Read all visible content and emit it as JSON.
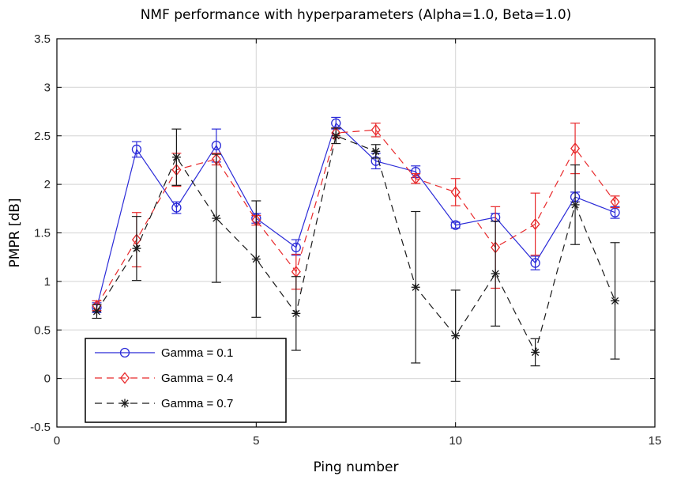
{
  "chart_data": {
    "type": "line",
    "title": "NMF performance with hyperparameters (Alpha=1.0, Beta=1.0)",
    "xlabel": "Ping number",
    "ylabel": "PMPR [dB]",
    "xlim": [
      0,
      15
    ],
    "ylim": [
      -0.5,
      3.5
    ],
    "xticks": [
      0,
      5,
      10,
      15
    ],
    "xtick_labels": [
      "0",
      "5",
      "10",
      "15"
    ],
    "yticks": [
      -0.5,
      0,
      0.5,
      1,
      1.5,
      2,
      2.5,
      3,
      3.5
    ],
    "ytick_labels": [
      "-0.5",
      "0",
      "0.5",
      "1",
      "1.5",
      "2",
      "2.5",
      "3",
      "3.5"
    ],
    "grid": true,
    "legend_position": "bottom-left",
    "x": [
      1,
      2,
      3,
      4,
      5,
      6,
      7,
      8,
      9,
      10,
      11,
      12,
      13,
      14
    ],
    "series": [
      {
        "name": "Gamma = 0.1",
        "color": "#2b2bd8",
        "line_style": "solid",
        "marker": "circle",
        "values": [
          0.73,
          2.36,
          1.76,
          2.4,
          1.65,
          1.35,
          2.63,
          2.24,
          2.13,
          1.58,
          1.66,
          1.19,
          1.87,
          1.71
        ],
        "error": [
          0.05,
          0.08,
          0.06,
          0.17,
          0.05,
          0.08,
          0.06,
          0.08,
          0.06,
          0.03,
          0.04,
          0.07,
          0.05,
          0.06
        ]
      },
      {
        "name": "Gamma = 0.4",
        "color": "#e8292b",
        "line_style": "dashed",
        "marker": "diamond",
        "values": [
          0.75,
          1.43,
          2.15,
          2.26,
          1.63,
          1.1,
          2.53,
          2.56,
          2.06,
          1.92,
          1.35,
          1.59,
          2.37,
          1.82
        ],
        "error": [
          0.05,
          0.28,
          0.17,
          0.06,
          0.05,
          0.18,
          0.05,
          0.07,
          0.05,
          0.14,
          0.42,
          0.32,
          0.26,
          0.06
        ]
      },
      {
        "name": "Gamma = 0.7",
        "color": "#1a1a1a",
        "line_style": "dashed",
        "marker": "asterisk",
        "values": [
          0.69,
          1.34,
          2.28,
          1.65,
          1.23,
          0.67,
          2.5,
          2.34,
          0.94,
          0.44,
          1.08,
          0.27,
          1.79,
          0.8
        ],
        "error": [
          0.07,
          0.33,
          0.29,
          0.66,
          0.6,
          0.38,
          0.08,
          0.07,
          0.78,
          0.47,
          0.54,
          0.14,
          0.41,
          0.6
        ]
      }
    ]
  }
}
